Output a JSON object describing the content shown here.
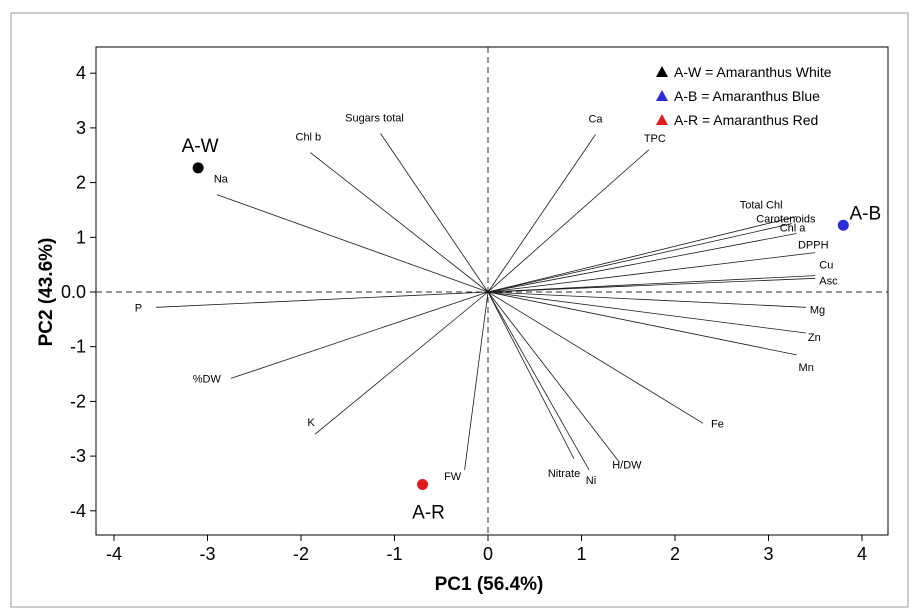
{
  "chart_data": {
    "type": "scatter",
    "subtype": "pca-biplot",
    "xlabel": "PC1 (56.4%)",
    "ylabel": "PC2 (43.6%)",
    "xlim": [
      -4.2,
      4.2
    ],
    "ylim": [
      -4.5,
      4.35
    ],
    "xticks": [
      -4,
      -3,
      -2,
      -1,
      0,
      1,
      2,
      3,
      4
    ],
    "yticks": [
      -4,
      -3,
      -2,
      -1,
      0,
      1,
      2,
      3,
      4
    ],
    "xtick_labels": [
      "-4",
      "-3",
      "-2",
      "-1",
      "0",
      "1",
      "2",
      "3",
      "4"
    ],
    "ytick_labels": [
      "-4",
      "-3",
      "-2",
      "-1",
      "0.0",
      "1",
      "2",
      "3",
      "4"
    ],
    "grid": false,
    "reference_lines": "dashed lines at x=0 and y=0",
    "scores": [
      {
        "label": "A-W",
        "x": -3.1,
        "y": 2.27,
        "color": "#000000"
      },
      {
        "label": "A-B",
        "x": 3.8,
        "y": 1.22,
        "color": "#2b2bd8"
      },
      {
        "label": "A-R",
        "x": -0.7,
        "y": -3.52,
        "color": "#e31a1c"
      }
    ],
    "loadings": [
      {
        "label": "Chl b",
        "x": -1.9,
        "y": 2.55
      },
      {
        "label": "Sugars total",
        "x": -1.15,
        "y": 2.9
      },
      {
        "label": "Na",
        "x": -2.9,
        "y": 1.78
      },
      {
        "label": "Ca",
        "x": 1.15,
        "y": 2.88
      },
      {
        "label": "TPC",
        "x": 1.72,
        "y": 2.6
      },
      {
        "label": "Total Chl",
        "x": 3.3,
        "y": 1.38
      },
      {
        "label": "Carotenoids",
        "x": 3.25,
        "y": 1.25
      },
      {
        "label": "Chl a",
        "x": 3.3,
        "y": 1.07
      },
      {
        "label": "DPPH",
        "x": 3.5,
        "y": 0.72
      },
      {
        "label": "Cu",
        "x": 3.5,
        "y": 0.3
      },
      {
        "label": "Asc",
        "x": 3.5,
        "y": 0.25
      },
      {
        "label": "Mg",
        "x": 3.4,
        "y": -0.28
      },
      {
        "label": "Zn",
        "x": 3.4,
        "y": -0.75
      },
      {
        "label": "Mn",
        "x": 3.3,
        "y": -1.15
      },
      {
        "label": "Fe",
        "x": 2.3,
        "y": -2.4
      },
      {
        "label": "H/DW",
        "x": 1.4,
        "y": -3.1
      },
      {
        "label": "Ni",
        "x": 1.08,
        "y": -3.25
      },
      {
        "label": "Nitrate",
        "x": 0.92,
        "y": -3.05
      },
      {
        "label": "FW",
        "x": -0.25,
        "y": -3.25
      },
      {
        "label": "K",
        "x": -1.85,
        "y": -2.6
      },
      {
        "label": "%DW",
        "x": -2.75,
        "y": -1.58
      },
      {
        "label": "P",
        "x": -3.55,
        "y": -0.28
      }
    ],
    "legend": {
      "position": "top-right",
      "entries": [
        {
          "label": "A-W = Amaranthus White",
          "color": "#000000",
          "marker": "triangle"
        },
        {
          "label": "A-B = Amaranthus Blue",
          "color": "#2b2bd8",
          "marker": "triangle"
        },
        {
          "label": "A-R = Amaranthus Red",
          "color": "#e31a1c",
          "marker": "triangle"
        }
      ]
    }
  }
}
